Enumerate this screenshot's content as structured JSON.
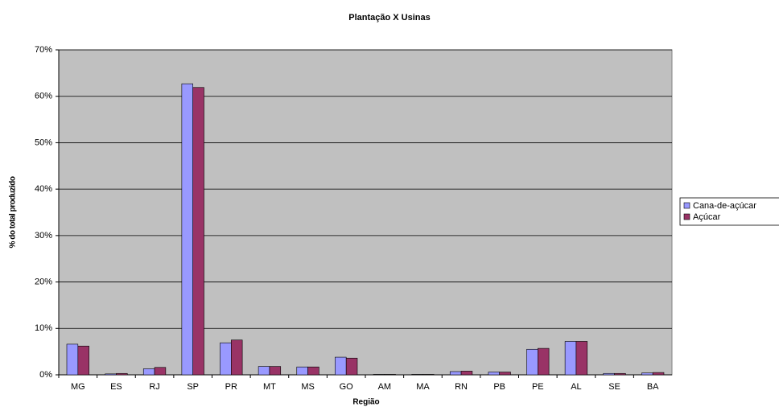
{
  "chart_data": {
    "type": "bar",
    "title": "Plantação X Usinas",
    "x_label": "Região",
    "y_label": "% do total produzido",
    "categories": [
      "MG",
      "ES",
      "RJ",
      "SP",
      "PR",
      "MT",
      "MS",
      "GO",
      "AM",
      "MA",
      "RN",
      "PB",
      "PE",
      "AL",
      "SE",
      "BA"
    ],
    "series": [
      {
        "name": "Cana-de-açúcar",
        "color": "#9999ff",
        "values": [
          6.6,
          0.2,
          1.3,
          62.7,
          6.9,
          1.8,
          1.7,
          3.8,
          0.1,
          0.1,
          0.7,
          0.6,
          5.5,
          7.2,
          0.3,
          0.4
        ]
      },
      {
        "name": "Açúcar",
        "color": "#993366",
        "values": [
          6.2,
          0.3,
          1.6,
          61.9,
          7.5,
          1.8,
          1.7,
          3.6,
          0.1,
          0.1,
          0.8,
          0.6,
          5.7,
          7.2,
          0.3,
          0.5
        ]
      }
    ],
    "ylim": [
      0,
      70
    ],
    "yticks": [
      {
        "value": 0,
        "label": "0%"
      },
      {
        "value": 10,
        "label": "10%"
      },
      {
        "value": 20,
        "label": "20%"
      },
      {
        "value": 30,
        "label": "30%"
      },
      {
        "value": 40,
        "label": "40%"
      },
      {
        "value": 50,
        "label": "50%"
      },
      {
        "value": 60,
        "label": "60%"
      },
      {
        "value": 70,
        "label": "70%"
      }
    ],
    "grid": true,
    "legend": "right"
  }
}
